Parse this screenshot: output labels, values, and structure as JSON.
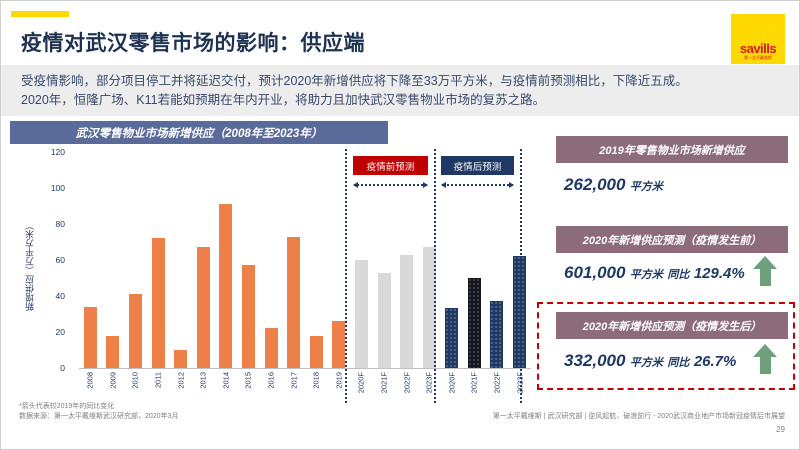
{
  "slide": {
    "title": "疫情对武汉零售市场的影响：供应端",
    "intro_line1": "受疫情影响，部分项目停工并将延迟交付，预计2020年新增供应将下降至33万平方米，与疫情前预测相比，下降近五成。",
    "intro_line2": "2020年，恒隆广场、K11若能如预期在年内开业，将助力且加快武汉零售物业市场的复苏之路。",
    "page_number": "29"
  },
  "logo": {
    "brand": "savills",
    "sub": "第一太平戴维斯"
  },
  "chart_data": {
    "type": "bar",
    "title": "武汉零售物业市场新增供应（2008年至2023年）",
    "ylabel": "新增供应（万平方米）",
    "ylim": [
      0,
      120
    ],
    "yticks": [
      0,
      20,
      40,
      60,
      80,
      100,
      120
    ],
    "legend": {
      "pre": "疫情前预测",
      "post": "疫情后预测"
    },
    "bars": [
      {
        "label": "2008",
        "value": 34,
        "series": "actual"
      },
      {
        "label": "2009",
        "value": 18,
        "series": "actual"
      },
      {
        "label": "2010",
        "value": 41,
        "series": "actual"
      },
      {
        "label": "2011",
        "value": 72,
        "series": "actual"
      },
      {
        "label": "2012",
        "value": 10,
        "series": "actual"
      },
      {
        "label": "2013",
        "value": 67,
        "series": "actual"
      },
      {
        "label": "2014",
        "value": 91,
        "series": "actual"
      },
      {
        "label": "2015",
        "value": 57,
        "series": "actual"
      },
      {
        "label": "2016",
        "value": 22,
        "series": "actual"
      },
      {
        "label": "2017",
        "value": 73,
        "series": "actual"
      },
      {
        "label": "2018",
        "value": 18,
        "series": "actual"
      },
      {
        "label": "2019",
        "value": 26.2,
        "series": "actual"
      },
      {
        "label": "2020F",
        "value": 60.1,
        "series": "pre"
      },
      {
        "label": "2021F",
        "value": 53,
        "series": "pre"
      },
      {
        "label": "2022F",
        "value": 63,
        "series": "pre"
      },
      {
        "label": "2023F",
        "value": 67,
        "series": "pre"
      },
      {
        "label": "2020F",
        "value": 33.2,
        "series": "post"
      },
      {
        "label": "2021F",
        "value": 50,
        "series": "post_dark"
      },
      {
        "label": "2022F",
        "value": 37,
        "series": "post"
      },
      {
        "label": "2023F",
        "value": 62,
        "series": "post"
      }
    ],
    "series_colors": {
      "actual": "#ED8049",
      "pre": "#D9D9D9",
      "post": "#1F3864",
      "post_dark": "#14181E"
    }
  },
  "panel": {
    "block1": {
      "header": "2019年零售物业市场新增供应",
      "value": "262,000",
      "unit": "平方米"
    },
    "block2": {
      "header": "2020年新增供应预测（疫情发生前）",
      "value": "601,000",
      "unit": "平方米",
      "yoy_label": "同比",
      "yoy": "129.4%"
    },
    "block3": {
      "header": "2020年新增供应预测（疫情发生后）",
      "value": "332,000",
      "unit": "平方米",
      "yoy_label": "同比",
      "yoy": "26.7%"
    }
  },
  "footer": {
    "note": "*箭头代表较2019年的同比变化",
    "source": "数据来源：第一太平戴维斯武汉研究部，2020年3月",
    "right": "第一太平戴维斯 | 武汉研究部 | 逆风起航，破浪前行 - 2020武汉商业地产市场新冠疫情后市展望"
  },
  "colors": {
    "accent_yellow": "#FFD900",
    "savills_red": "#D71920",
    "title_navy": "#1F3251",
    "chart_bar_orange": "#ED8049",
    "forecast_gray": "#D9D9D9",
    "forecast_navy": "#1F3864",
    "chart_titlebar": "#5B6B99",
    "panel_header": "#8C6B7A",
    "legend_red": "#C00000",
    "green_arrow": "#6FA07C",
    "dashed_red": "#C00000",
    "intro_bg": "#EDEDED"
  }
}
